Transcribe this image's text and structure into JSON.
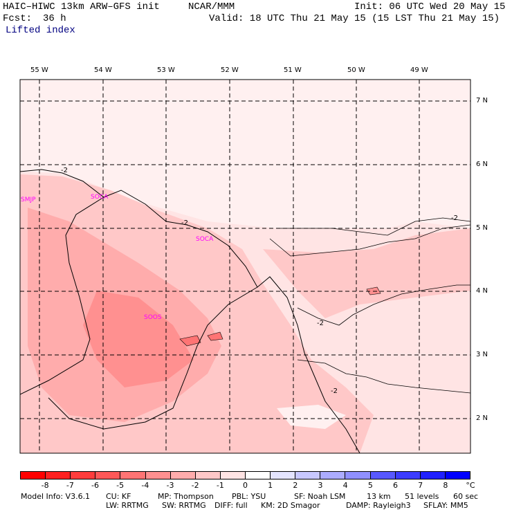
{
  "header": {
    "model_title": "HAIC–HIWC 13km ARW–GFS init",
    "org": "NCAR/MMM",
    "init": "Init: 06 UTC Wed 20 May 15",
    "fcst_label": "Fcst:",
    "fcst_value": "36 h",
    "valid": "Valid: 18 UTC Thu 21 May 15 (15 LST Thu 21 May 15)",
    "field": "Lifted index"
  },
  "map": {
    "lon_labels": [
      "55 W",
      "54 W",
      "53 W",
      "52 W",
      "51 W",
      "50 W",
      "49 W"
    ],
    "lat_labels": [
      "7 N",
      "6 N",
      "5 N",
      "4 N",
      "3 N",
      "2 N"
    ],
    "stations": [
      "SMJP",
      "SOCA",
      "SOCA",
      "SOOS"
    ],
    "contour_labels": [
      "-2",
      "-2",
      "-2",
      "-2",
      "-2"
    ]
  },
  "colorbar": {
    "labels": [
      "-8",
      "-7",
      "-6",
      "-5",
      "-4",
      "-3",
      "-2",
      "-1",
      "0",
      "1",
      "2",
      "3",
      "4",
      "5",
      "6",
      "7",
      "8"
    ],
    "unit": "°C",
    "colors": [
      "#ff0000",
      "#ff2020",
      "#ff3c3c",
      "#ff5858",
      "#ff7474",
      "#ff9090",
      "#ffacac",
      "#ffc8c8",
      "#ffe4e4",
      "#ffffff",
      "#e4e4ff",
      "#c8c8ff",
      "#acacff",
      "#9090ff",
      "#5858ff",
      "#3c3cff",
      "#2020ff",
      "#0000ff"
    ]
  },
  "footer": {
    "line1": [
      "Model Info: V3.6.1",
      "CU: KF",
      "MP: Thompson",
      "PBL: YSU",
      "SF: Noah LSM",
      "13 km",
      "51 levels",
      "60 sec"
    ],
    "line2": [
      "LW: RRTMG",
      "SW: RRTMG",
      "DIFF: full",
      "KM: 2D Smagor",
      "DAMP: Rayleigh3",
      "SFLAY: MM5"
    ]
  }
}
